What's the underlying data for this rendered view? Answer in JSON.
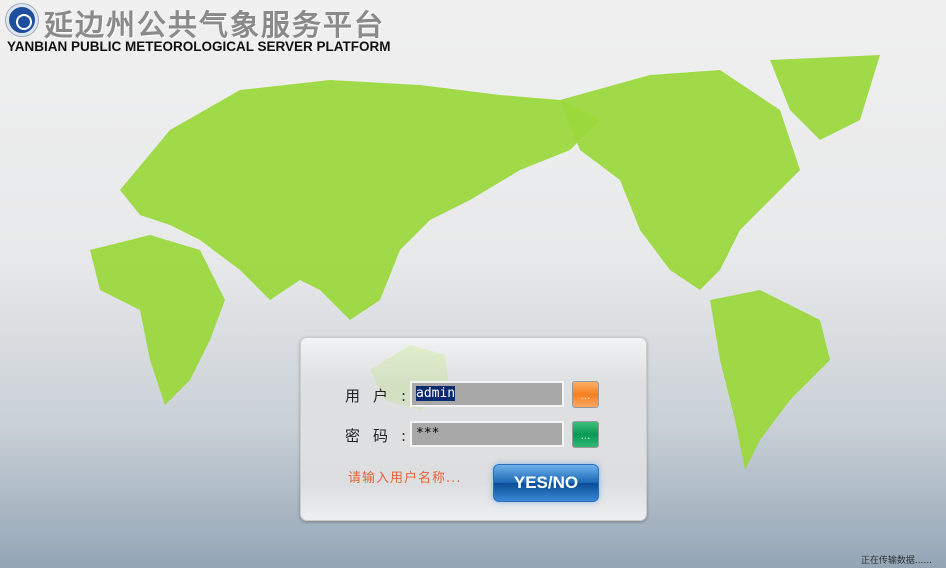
{
  "header": {
    "title_cn": "延边州公共气象服务平台",
    "title_en": "YANBIAN PUBLIC METEOROLOGICAL SERVER PLATFORM"
  },
  "login": {
    "username_label": "用户:",
    "username_value": "admin",
    "username_btn": "...",
    "password_label": "密码:",
    "password_value": "***",
    "password_btn": "...",
    "hint": "请输入用户名称...",
    "submit_label": "YES/NO"
  },
  "status": "正在传输数据......",
  "colors": {
    "map_top": "#1a6db3",
    "map_bottom": "#8fd13a",
    "hint": "#e8633a",
    "button": "#1b66b4"
  }
}
